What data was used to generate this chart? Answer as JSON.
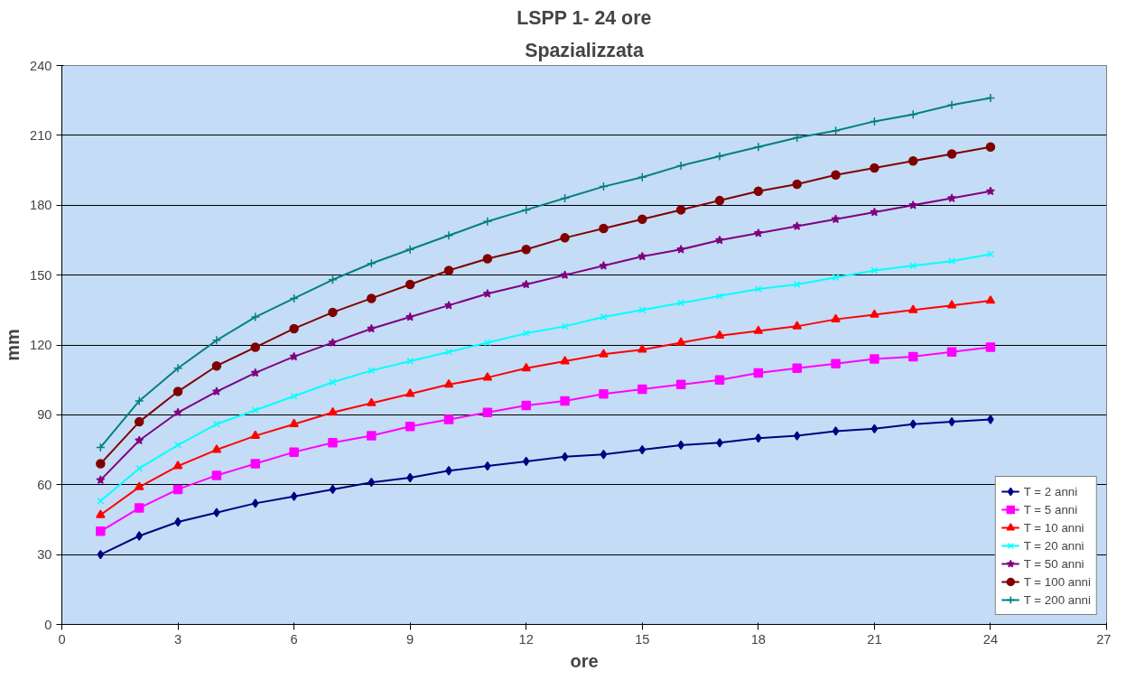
{
  "chart_data": {
    "type": "line",
    "title": "LSPP 1- 24 ore",
    "subtitle": "Spazializzata",
    "xlabel": "ore",
    "ylabel": "mm",
    "x": [
      1,
      2,
      3,
      4,
      5,
      6,
      7,
      8,
      9,
      10,
      11,
      12,
      13,
      14,
      15,
      16,
      17,
      18,
      19,
      20,
      21,
      22,
      23,
      24
    ],
    "xlim": [
      0,
      27
    ],
    "xticks": [
      0,
      3,
      6,
      9,
      12,
      15,
      18,
      21,
      24,
      27
    ],
    "ylim": [
      0,
      240
    ],
    "yticks": [
      0,
      30,
      60,
      90,
      120,
      150,
      180,
      210,
      240
    ],
    "grid": "y",
    "legend": "bottom right",
    "line_style": "solid",
    "series": [
      {
        "name": "T = 2 anni",
        "color": "#000080",
        "marker": "diamond",
        "values": [
          30,
          38,
          44,
          48,
          52,
          55,
          58,
          61,
          63,
          66,
          68,
          70,
          72,
          73,
          75,
          77,
          78,
          80,
          81,
          83,
          84,
          86,
          87,
          88
        ]
      },
      {
        "name": "T = 5 anni",
        "color": "#ff00ff",
        "marker": "square",
        "values": [
          40,
          50,
          58,
          64,
          69,
          74,
          78,
          81,
          85,
          88,
          91,
          94,
          96,
          99,
          101,
          103,
          105,
          108,
          110,
          112,
          114,
          115,
          117,
          119
        ]
      },
      {
        "name": "T = 10 anni",
        "color": "#ff0000",
        "marker": "triangle",
        "values": [
          47,
          59,
          68,
          75,
          81,
          86,
          91,
          95,
          99,
          103,
          106,
          110,
          113,
          116,
          118,
          121,
          124,
          126,
          128,
          131,
          133,
          135,
          137,
          139
        ]
      },
      {
        "name": "T = 20 anni",
        "color": "#00ffff",
        "marker": "x",
        "values": [
          53,
          67,
          77,
          86,
          92,
          98,
          104,
          109,
          113,
          117,
          121,
          125,
          128,
          132,
          135,
          138,
          141,
          144,
          146,
          149,
          152,
          154,
          156,
          159
        ]
      },
      {
        "name": "T = 50 anni",
        "color": "#800080",
        "marker": "star",
        "values": [
          62,
          79,
          91,
          100,
          108,
          115,
          121,
          127,
          132,
          137,
          142,
          146,
          150,
          154,
          158,
          161,
          165,
          168,
          171,
          174,
          177,
          180,
          183,
          186
        ]
      },
      {
        "name": "T = 100 anni",
        "color": "#800000",
        "marker": "circle",
        "values": [
          69,
          87,
          100,
          111,
          119,
          127,
          134,
          140,
          146,
          152,
          157,
          161,
          166,
          170,
          174,
          178,
          182,
          186,
          189,
          193,
          196,
          199,
          202,
          205
        ]
      },
      {
        "name": "T = 200 anni",
        "color": "#008080",
        "marker": "cross",
        "values": [
          76,
          96,
          110,
          122,
          132,
          140,
          148,
          155,
          161,
          167,
          173,
          178,
          183,
          188,
          192,
          197,
          201,
          205,
          209,
          212,
          216,
          219,
          223,
          226
        ]
      }
    ]
  }
}
